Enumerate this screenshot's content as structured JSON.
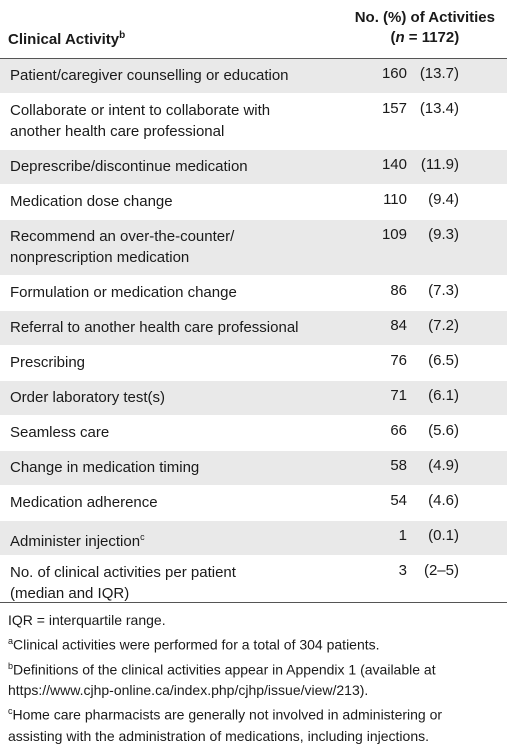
{
  "header": {
    "activity_label": "Clinical Activity",
    "activity_sup": "b",
    "count_label_line1": "No. (%) of Activities",
    "count_label_n": "n",
    "count_label_rest": " = 1172)"
  },
  "rows": [
    {
      "label1": "Patient/caregiver counselling or education",
      "label2": "",
      "sup": "",
      "count": "160",
      "pct": "(13.7)"
    },
    {
      "label1": "Collaborate or intent to collaborate with",
      "label2": "another health care professional",
      "sup": "",
      "count": "157",
      "pct": "(13.4)"
    },
    {
      "label1": "Deprescribe/discontinue medication",
      "label2": "",
      "sup": "",
      "count": "140",
      "pct": "(11.9)"
    },
    {
      "label1": "Medication dose change",
      "label2": "",
      "sup": "",
      "count": "110",
      "pct": "(9.4)"
    },
    {
      "label1": "Recommend an over-the-counter/",
      "label2": "nonprescription medication",
      "sup": "",
      "count": "109",
      "pct": "(9.3)"
    },
    {
      "label1": "Formulation or medication change",
      "label2": "",
      "sup": "",
      "count": "86",
      "pct": "(7.3)"
    },
    {
      "label1": "Referral to another health care professional",
      "label2": "",
      "sup": "",
      "count": "84",
      "pct": "(7.2)"
    },
    {
      "label1": "Prescribing",
      "label2": "",
      "sup": "",
      "count": "76",
      "pct": "(6.5)"
    },
    {
      "label1": "Order laboratory test(s)",
      "label2": "",
      "sup": "",
      "count": "71",
      "pct": "(6.1)"
    },
    {
      "label1": "Seamless care",
      "label2": "",
      "sup": "",
      "count": "66",
      "pct": "(5.6)"
    },
    {
      "label1": "Change in medication timing",
      "label2": "",
      "sup": "",
      "count": "58",
      "pct": "(4.9)"
    },
    {
      "label1": "Medication adherence",
      "label2": "",
      "sup": "",
      "count": "54",
      "pct": "(4.6)"
    },
    {
      "label1": "Administer injection",
      "label2": "",
      "sup": "c",
      "count": "1",
      "pct": "(0.1)"
    },
    {
      "label1": "No. of clinical activities per patient",
      "label2": "(median and IQR)",
      "sup": "",
      "count": "3",
      "pct": "(2–5)"
    }
  ],
  "notes": {
    "abbrev": "IQR = interquartile range.",
    "note_a_sup": "a",
    "note_a": "Clinical activities were performed for a total of 304 patients.",
    "note_b_sup": "b",
    "note_b_line1": "Definitions of the clinical activities appear in Appendix 1 (available at",
    "note_b_line2": "https://www.cjhp-online.ca/index.php/cjhp/issue/view/213).",
    "note_c_sup": "c",
    "note_c_line1": "Home care pharmacists are generally not involved in administering or",
    "note_c_line2": "assisting with the administration of medications, including injections."
  }
}
